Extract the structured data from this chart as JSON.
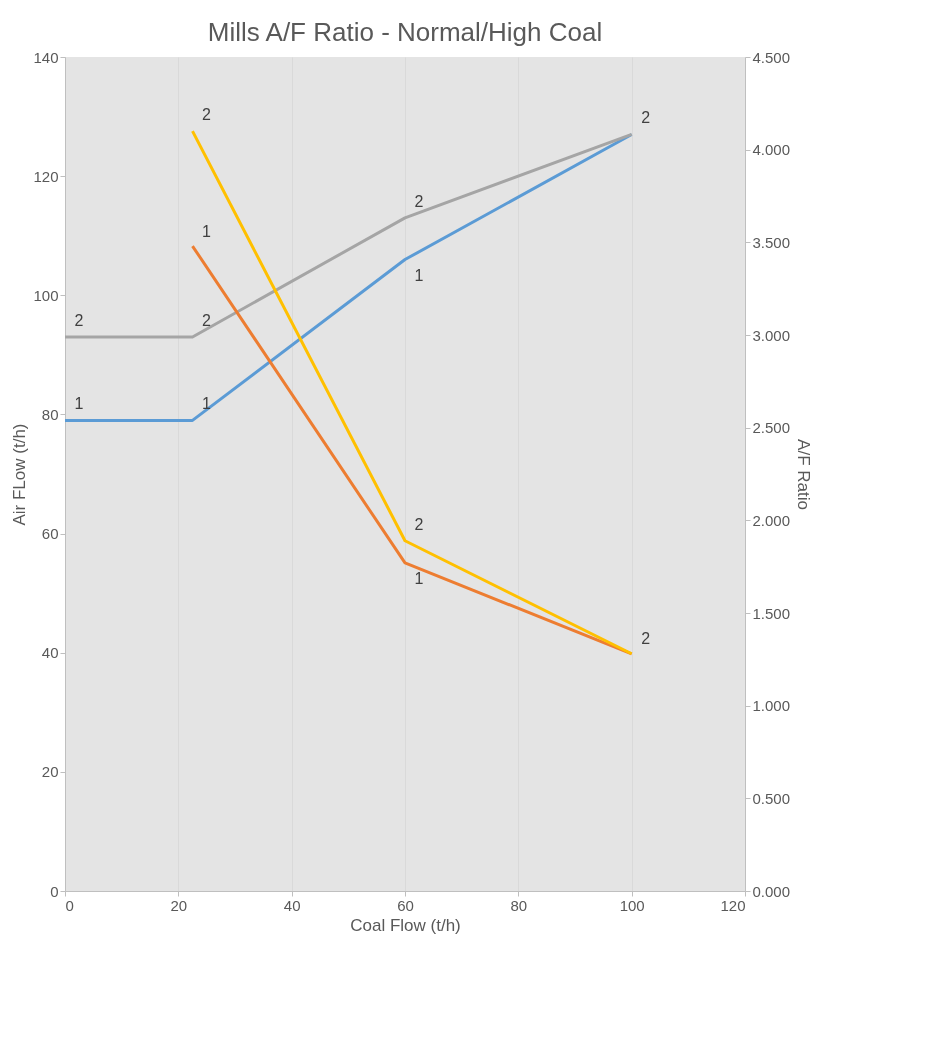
{
  "chart_data": {
    "type": "line",
    "title": "Mills A/F Ratio - Normal/High Coal",
    "xlabel": "Coal Flow (t/h)",
    "ylabel": "Air FLow (t/h)",
    "y2label": "A/F Ratio",
    "xlim": [
      0,
      120
    ],
    "xticks": [
      0,
      20,
      40,
      60,
      80,
      100,
      120
    ],
    "ylim": [
      0,
      140
    ],
    "yticks": [
      0,
      20,
      40,
      60,
      80,
      100,
      120,
      140
    ],
    "y2lim": [
      0,
      4.5
    ],
    "y2ticks": [
      {
        "value": 0,
        "label": "0.000"
      },
      {
        "value": 0.5,
        "label": "0.500"
      },
      {
        "value": 1,
        "label": "1.000"
      },
      {
        "value": 1.5,
        "label": "1.500"
      },
      {
        "value": 2,
        "label": "2.000"
      },
      {
        "value": 2.5,
        "label": "2.500"
      },
      {
        "value": 3,
        "label": "3.000"
      },
      {
        "value": 3.5,
        "label": "3.500"
      },
      {
        "value": 4,
        "label": "4.000"
      },
      {
        "value": 4.5,
        "label": "4.500"
      }
    ],
    "grid": "x",
    "marker": "none",
    "series": [
      {
        "color": "#5b9bd5",
        "x": [
          0,
          22.5,
          60,
          100
        ],
        "values": [
          79,
          79,
          106,
          127
        ]
      },
      {
        "color": "#a5a5a5",
        "x": [
          0,
          22.5,
          60,
          100
        ],
        "values": [
          93,
          93,
          113,
          127
        ]
      },
      {
        "color": "#ed7d31",
        "axis": "y2",
        "x": [
          22.5,
          60,
          100
        ],
        "values": [
          3.48,
          1.77,
          1.28
        ]
      },
      {
        "color": "#ffc000",
        "axis": "y2",
        "x": [
          22.5,
          60,
          100
        ],
        "values": [
          4.1,
          1.89,
          1.28
        ]
      }
    ],
    "annotations": [
      {
        "text": "1",
        "x": 0,
        "y": 79
      },
      {
        "text": "1",
        "x": 22.5,
        "y": 79
      },
      {
        "text": "1",
        "x": 60,
        "y": 106
      },
      {
        "text": "2",
        "x": 0,
        "y": 93
      },
      {
        "text": "2",
        "x": 22.5,
        "y": 93
      },
      {
        "text": "2",
        "x": 60,
        "y": 113
      },
      {
        "text": "2",
        "x": 100,
        "y": 127
      },
      {
        "text": "1",
        "x": 22.5,
        "y": 108
      },
      {
        "text": "1",
        "x": 60,
        "y": 55
      },
      {
        "text": "2",
        "x": 22.5,
        "y": 127.5
      },
      {
        "text": "2",
        "x": 60,
        "y": 58.8
      },
      {
        "text": "2",
        "x": 100,
        "y": 39.7
      }
    ]
  }
}
